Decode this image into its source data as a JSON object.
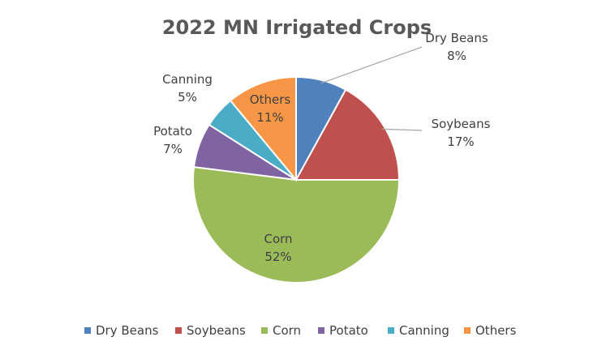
{
  "chart_data": {
    "type": "pie",
    "title": "2022 MN Irrigated Crops",
    "legend_position": "bottom",
    "slices": [
      {
        "label": "Dry Beans",
        "value": 8,
        "value_label": "8%",
        "color": "#4F81BD"
      },
      {
        "label": "Soybeans",
        "value": 17,
        "value_label": "17%",
        "color": "#C0504D"
      },
      {
        "label": "Corn",
        "value": 52,
        "value_label": "52%",
        "color": "#9BBB59"
      },
      {
        "label": "Potato",
        "value": 7,
        "value_label": "7%",
        "color": "#8064A2"
      },
      {
        "label": "Canning",
        "value": 5,
        "value_label": "5%",
        "color": "#4BACC6"
      },
      {
        "label": "Others",
        "value": 11,
        "value_label": "11%",
        "color": "#F79646"
      }
    ]
  }
}
